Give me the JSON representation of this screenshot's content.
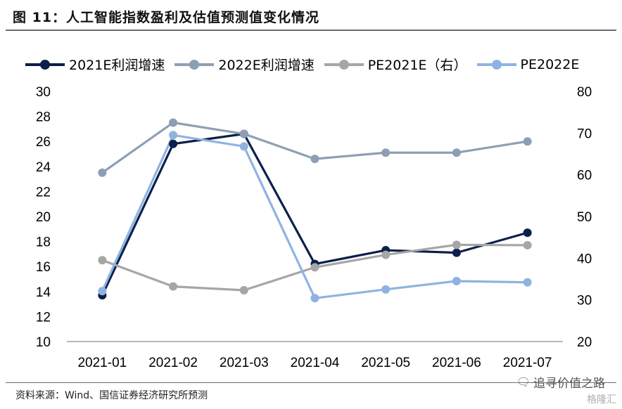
{
  "header": {
    "title": "图  11：人工智能指数盈利及估值预测值变化情况"
  },
  "source": "资料来源：Wind、国信证券经济研究所预测",
  "brand": {
    "icon": "wechat-icon",
    "text": "追寻价值之路",
    "watermark": "格隆汇"
  },
  "colors": {
    "series1": "#0b1f4b",
    "series2": "#8d9fb4",
    "series3": "#a6a6a6",
    "series4": "#8fb3e0",
    "axis": "#a0a0a0"
  },
  "chart_data": {
    "type": "line",
    "categories": [
      "2021-01",
      "2021-02",
      "2021-03",
      "2021-04",
      "2021-05",
      "2021-06",
      "2021-07"
    ],
    "y_left": {
      "ylim": [
        10,
        30
      ],
      "ticks": [
        "10",
        "12",
        "14",
        "16",
        "18",
        "20",
        "22",
        "24",
        "26",
        "28",
        "30"
      ]
    },
    "y_right": {
      "ylim": [
        20,
        80
      ],
      "ticks": [
        "20",
        "30",
        "40",
        "50",
        "60",
        "70",
        "80"
      ]
    },
    "series": [
      {
        "name": "2021E利润增速",
        "axis": "left",
        "values": [
          13.7,
          25.8,
          26.6,
          16.2,
          17.3,
          17.1,
          18.7
        ]
      },
      {
        "name": "2022E利润增速",
        "axis": "left",
        "values": [
          23.5,
          27.5,
          26.6,
          24.6,
          25.1,
          25.1,
          26.0
        ]
      },
      {
        "name": "PE2021E（右）",
        "axis": "right",
        "values": [
          39.5,
          33.2,
          32.3,
          37.8,
          40.8,
          43.2,
          43.1
        ]
      },
      {
        "name": "PE2022E",
        "axis": "right",
        "values": [
          32.1,
          69.5,
          66.8,
          30.4,
          32.5,
          34.5,
          34.2
        ]
      }
    ],
    "grid": false,
    "legend_position": "top"
  }
}
